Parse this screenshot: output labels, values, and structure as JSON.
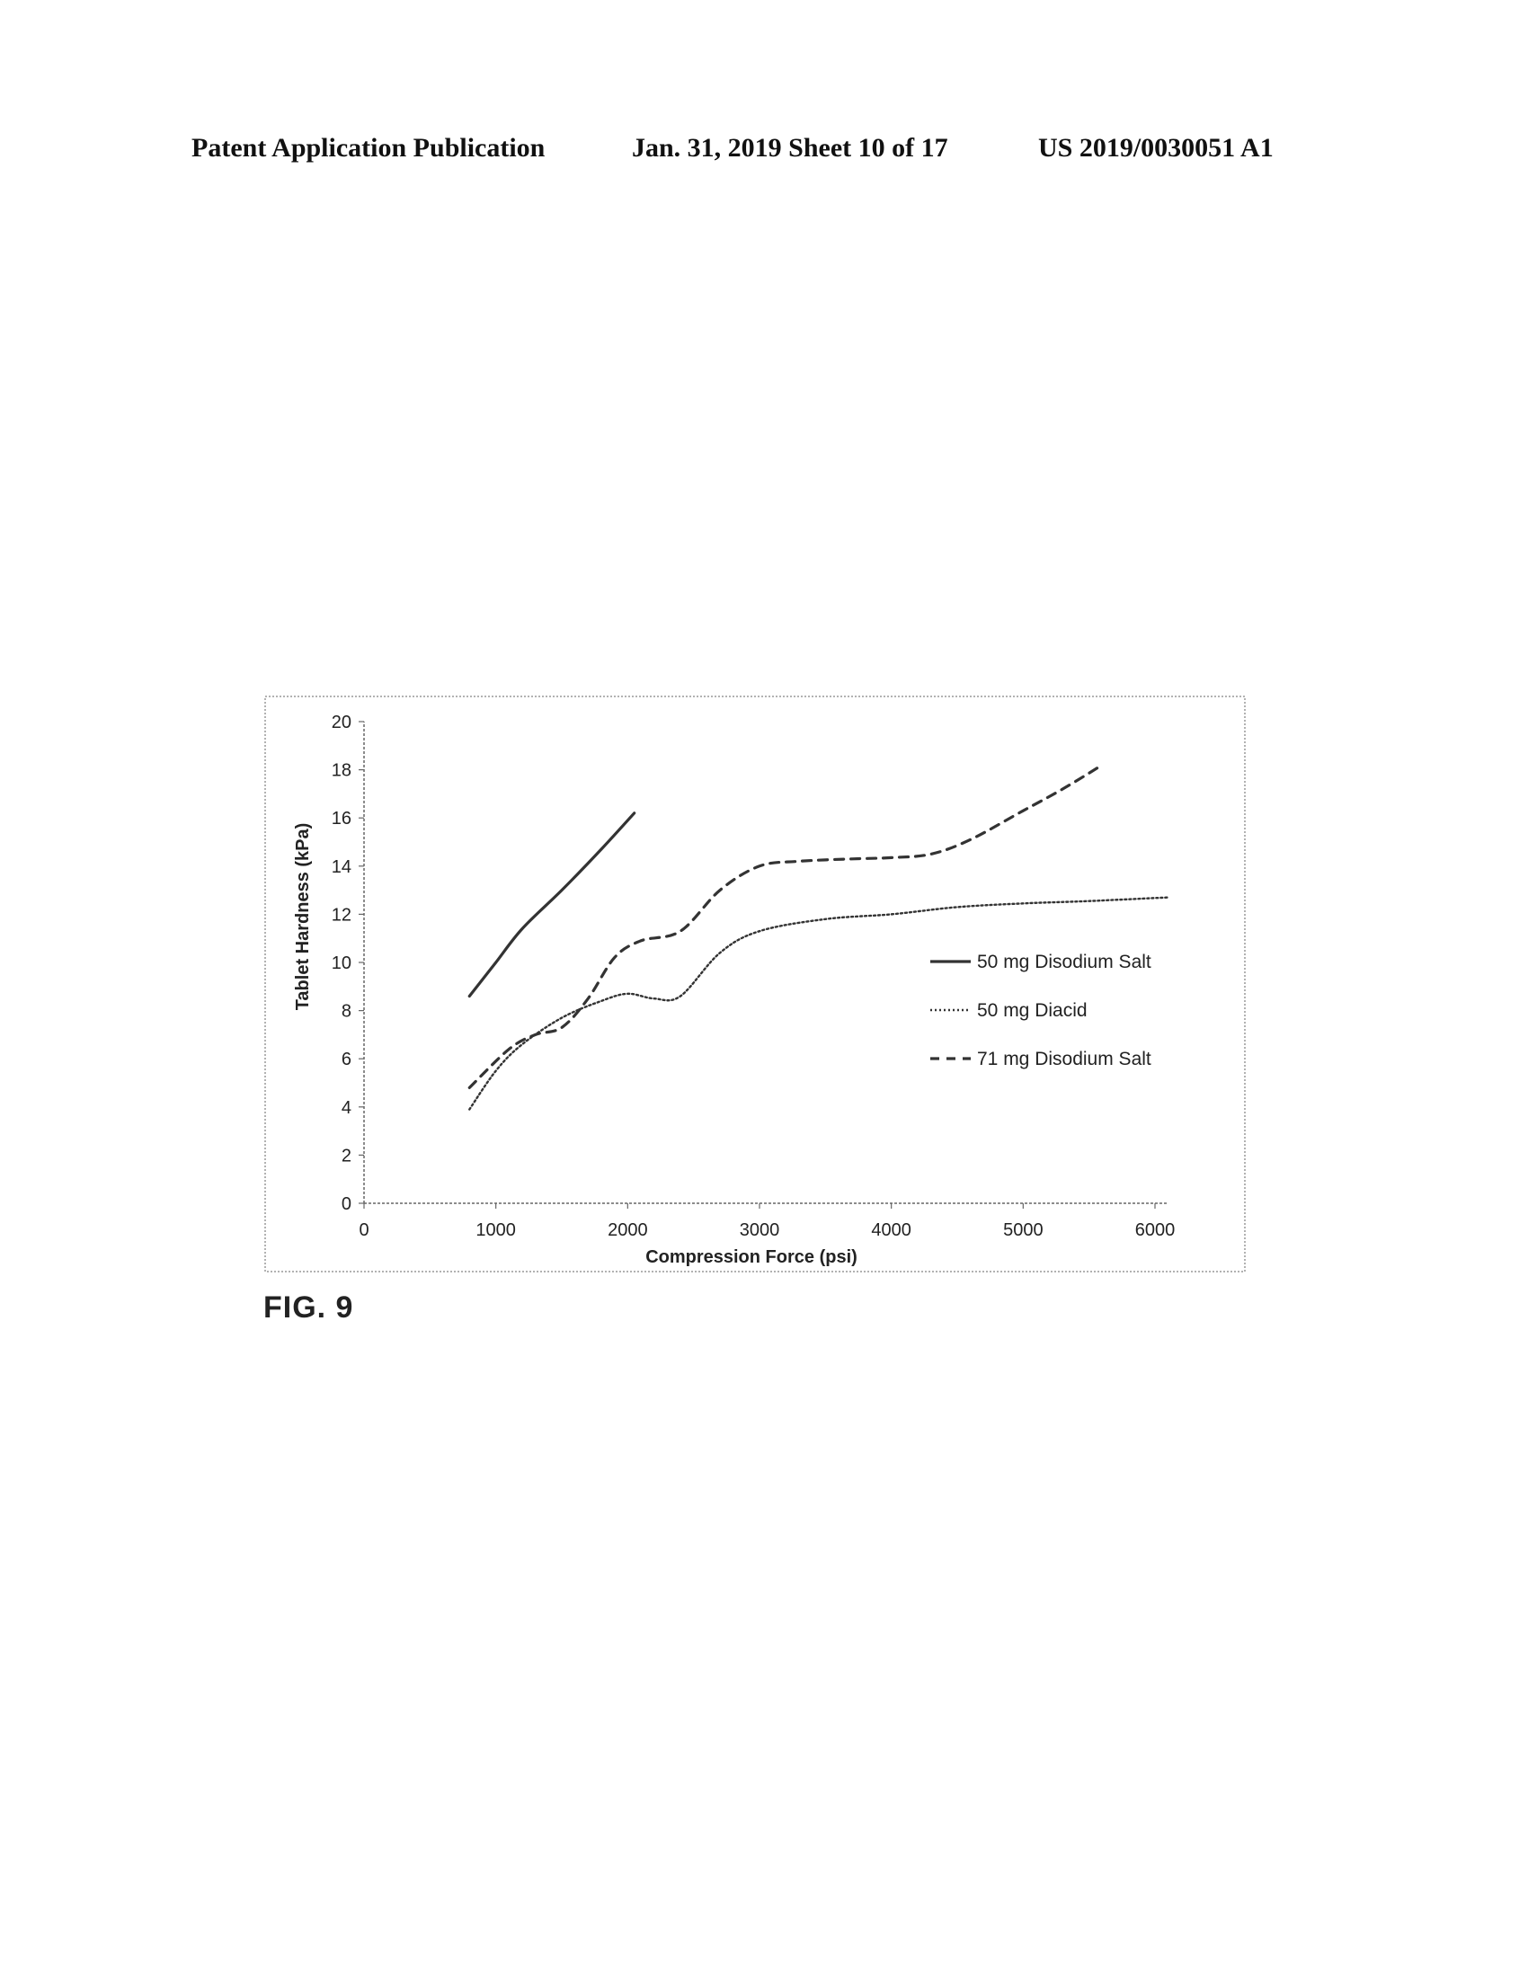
{
  "header": {
    "publication": "Patent Application Publication",
    "date_sheet": "Jan. 31, 2019  Sheet 10 of 17",
    "number": "US 2019/0030051 A1"
  },
  "figure_label": "FIG. 9",
  "chart_data": {
    "type": "line",
    "xlabel": "Compression Force (psi)",
    "ylabel": "Tablet Hardness (kPa)",
    "xlim": [
      0,
      6000
    ],
    "ylim": [
      0,
      20
    ],
    "xticks": [
      "0",
      "1000",
      "2000",
      "3000",
      "4000",
      "5000",
      "6000"
    ],
    "yticks": [
      "0",
      "2",
      "4",
      "6",
      "8",
      "10",
      "12",
      "14",
      "16",
      "18",
      "20"
    ],
    "grid": false,
    "legend_position": "right",
    "series": [
      {
        "name": "50 mg Disodium Salt",
        "style": "solid",
        "points": [
          [
            800,
            8.6
          ],
          [
            1000,
            10.0
          ],
          [
            1200,
            11.4
          ],
          [
            1500,
            13.0
          ],
          [
            1800,
            14.7
          ],
          [
            2050,
            16.2
          ]
        ]
      },
      {
        "name": "50 mg Diacid",
        "style": "dotted",
        "points": [
          [
            800,
            3.9
          ],
          [
            1000,
            5.5
          ],
          [
            1200,
            6.6
          ],
          [
            1500,
            7.7
          ],
          [
            1800,
            8.4
          ],
          [
            2000,
            8.7
          ],
          [
            2200,
            8.5
          ],
          [
            2400,
            8.6
          ],
          [
            2700,
            10.4
          ],
          [
            3000,
            11.3
          ],
          [
            3500,
            11.8
          ],
          [
            4000,
            12.0
          ],
          [
            4500,
            12.3
          ],
          [
            5000,
            12.45
          ],
          [
            5500,
            12.55
          ],
          [
            6100,
            12.7
          ]
        ]
      },
      {
        "name": "71 mg Disodium Salt",
        "style": "dashed",
        "points": [
          [
            800,
            4.8
          ],
          [
            1100,
            6.4
          ],
          [
            1300,
            7.0
          ],
          [
            1500,
            7.3
          ],
          [
            1700,
            8.5
          ],
          [
            1900,
            10.2
          ],
          [
            2100,
            10.9
          ],
          [
            2400,
            11.3
          ],
          [
            2700,
            13.0
          ],
          [
            3000,
            14.0
          ],
          [
            3300,
            14.2
          ],
          [
            3700,
            14.3
          ],
          [
            4000,
            14.35
          ],
          [
            4300,
            14.5
          ],
          [
            4600,
            15.1
          ],
          [
            5000,
            16.3
          ],
          [
            5300,
            17.2
          ],
          [
            5600,
            18.2
          ]
        ]
      }
    ]
  }
}
